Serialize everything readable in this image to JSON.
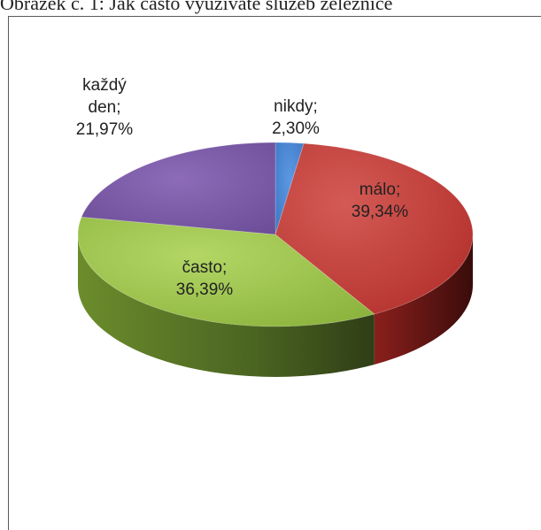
{
  "caption": "Obrázek č. 1: Jak často využíváte služeb železnice",
  "chart_data": {
    "type": "pie",
    "style": "3d",
    "title": "",
    "slices": [
      {
        "name": "nikdy",
        "value": 2.3,
        "label": "nikdy;",
        "value_label": "2,30%",
        "color": "#4a86d4"
      },
      {
        "name": "málo",
        "value": 39.34,
        "label": "málo;",
        "value_label": "39,34%",
        "color": "#c23b37"
      },
      {
        "name": "často",
        "value": 36.39,
        "label": "často;",
        "value_label": "36,39%",
        "color": "#9cc24a"
      },
      {
        "name": "každý den",
        "value": 21.97,
        "label": "každý\nden;",
        "value_label": "21,97%",
        "color": "#7b5aa6"
      }
    ]
  }
}
